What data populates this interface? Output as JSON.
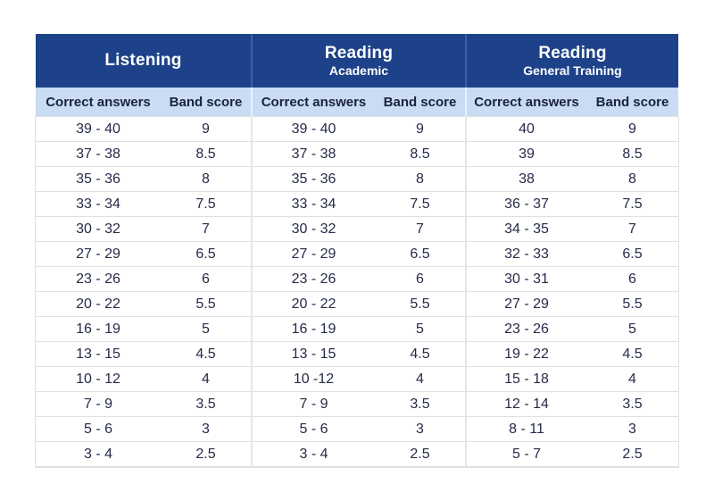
{
  "colors": {
    "header_bg": "#1d4289",
    "header_text": "#ffffff",
    "header_divider": "#3a5fa6",
    "subheader_bg": "#c9dcf4",
    "subheader_text": "#1b2140",
    "subheader_divider": "#e9f1fb",
    "body_text": "#252b49",
    "row_border": "#e0e0e0",
    "body_divider": "#e7e7e7",
    "page_bg": "#ffffff"
  },
  "table": {
    "sections": [
      {
        "title": "Listening",
        "subtitle": "",
        "col1": "Correct answers",
        "col2": "Band score",
        "rows": [
          [
            "39 - 40",
            "9"
          ],
          [
            "37 - 38",
            "8.5"
          ],
          [
            "35 - 36",
            "8"
          ],
          [
            "33 - 34",
            "7.5"
          ],
          [
            "30 - 32",
            "7"
          ],
          [
            "27 - 29",
            "6.5"
          ],
          [
            "23 - 26",
            "6"
          ],
          [
            "20 - 22",
            "5.5"
          ],
          [
            "16 - 19",
            "5"
          ],
          [
            "13 - 15",
            "4.5"
          ],
          [
            "10 - 12",
            "4"
          ],
          [
            "7 - 9",
            "3.5"
          ],
          [
            "5 - 6",
            "3"
          ],
          [
            "3 - 4",
            "2.5"
          ]
        ]
      },
      {
        "title": "Reading",
        "subtitle": "Academic",
        "col1": "Correct answers",
        "col2": "Band score",
        "rows": [
          [
            "39 - 40",
            "9"
          ],
          [
            "37 - 38",
            "8.5"
          ],
          [
            "35 - 36",
            "8"
          ],
          [
            "33 - 34",
            "7.5"
          ],
          [
            "30 - 32",
            "7"
          ],
          [
            "27 - 29",
            "6.5"
          ],
          [
            "23 - 26",
            "6"
          ],
          [
            "20 - 22",
            "5.5"
          ],
          [
            "16 - 19",
            "5"
          ],
          [
            "13 - 15",
            "4.5"
          ],
          [
            "10 -12",
            "4"
          ],
          [
            "7 - 9",
            "3.5"
          ],
          [
            "5 - 6",
            "3"
          ],
          [
            "3 - 4",
            "2.5"
          ]
        ]
      },
      {
        "title": "Reading",
        "subtitle": "General Training",
        "col1": "Correct answers",
        "col2": "Band score",
        "rows": [
          [
            "40",
            "9"
          ],
          [
            "39",
            "8.5"
          ],
          [
            "38",
            "8"
          ],
          [
            "36 - 37",
            "7.5"
          ],
          [
            "34 - 35",
            "7"
          ],
          [
            "32 - 33",
            "6.5"
          ],
          [
            "30 - 31",
            "6"
          ],
          [
            "27 - 29",
            "5.5"
          ],
          [
            "23 - 26",
            "5"
          ],
          [
            "19 - 22",
            "4.5"
          ],
          [
            "15 - 18",
            "4"
          ],
          [
            "12 - 14",
            "3.5"
          ],
          [
            "8 - 11",
            "3"
          ],
          [
            "5 - 7",
            "2.5"
          ]
        ]
      }
    ]
  }
}
